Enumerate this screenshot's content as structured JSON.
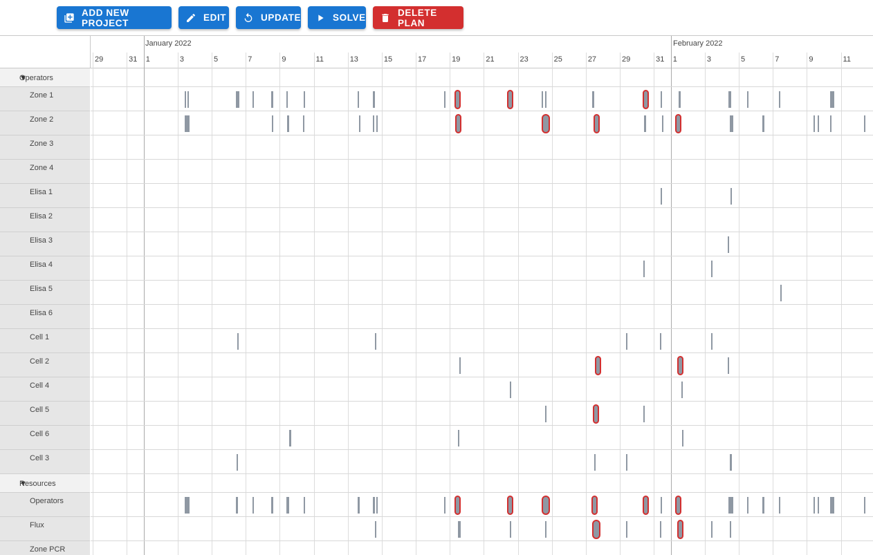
{
  "toolbar": {
    "buttons": [
      {
        "label": "ADD NEW PROJECT",
        "icon": "add-box-icon",
        "color": "#1976d2"
      },
      {
        "label": "EDIT",
        "icon": "pencil-icon",
        "color": "#1976d2"
      },
      {
        "label": "UPDATE",
        "icon": "refresh-icon",
        "color": "#1976d2"
      },
      {
        "label": "SOLVE",
        "icon": "play-icon",
        "color": "#1976d2"
      },
      {
        "label": "DELETE PLAN",
        "icon": "trash-icon",
        "color": "#d32f2f"
      }
    ]
  },
  "timeline": {
    "months": [
      "January 2022",
      "February 2022"
    ],
    "day_ticks": [
      "29",
      "31",
      "1",
      "3",
      "5",
      "7",
      "9",
      "11",
      "13",
      "15",
      "17",
      "19",
      "21",
      "23",
      "25",
      "27",
      "29",
      "31",
      "1",
      "3",
      "5",
      "7",
      "9",
      "11"
    ]
  },
  "groups": [
    {
      "name": "Operators",
      "rows": [
        "Zone 1",
        "Zone 2",
        "Zone 3",
        "Zone 4",
        "Elisa 1",
        "Elisa 2",
        "Elisa 3",
        "Elisa 4",
        "Elisa 5",
        "Elisa 6",
        "Cell 1",
        "Cell 2",
        "Cell 4",
        "Cell 5",
        "Cell 6",
        "Cell 3"
      ]
    },
    {
      "name": "Resources",
      "rows": [
        "Operators",
        "Flux",
        "Zone PCR"
      ]
    }
  ],
  "colors": {
    "primary": "#1976d2",
    "danger": "#d32f2f",
    "task": "#8f98a3",
    "conflict_outline": "#d32f2f",
    "panel": "#e6e6e6"
  }
}
